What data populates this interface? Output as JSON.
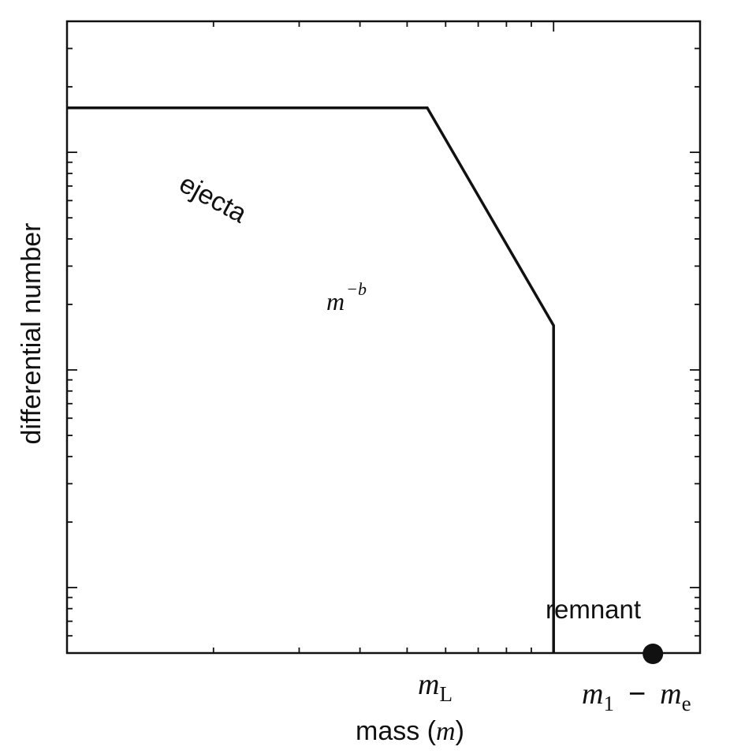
{
  "chart_data": {
    "type": "line",
    "title": "",
    "xlabel_text": "mass (",
    "xlabel_var": "m",
    "xlabel_close": ")",
    "ylabel": "differential number",
    "xscale": "log",
    "yscale": "log",
    "grid": false,
    "series": [
      {
        "name": "ejecta",
        "note_base": "m",
        "note_exp": "−b",
        "points": [
          [
            0.1,
            1.6
          ],
          [
            0.55,
            1.6
          ],
          [
            1.0,
            0.16
          ],
          [
            1.0,
            0.005
          ]
        ]
      }
    ],
    "x_ticks": [
      {
        "x": 1.0,
        "base": "m",
        "sub": "L"
      }
    ],
    "remnant": {
      "label": "remnant",
      "x": 1.6,
      "expr_base1": "m",
      "expr_sub1": "1",
      "expr_op": "−",
      "expr_base2": "m",
      "expr_sub2": "e"
    },
    "colors": {
      "line": "#111111",
      "frame": "#111111",
      "marker": "#111111"
    }
  }
}
